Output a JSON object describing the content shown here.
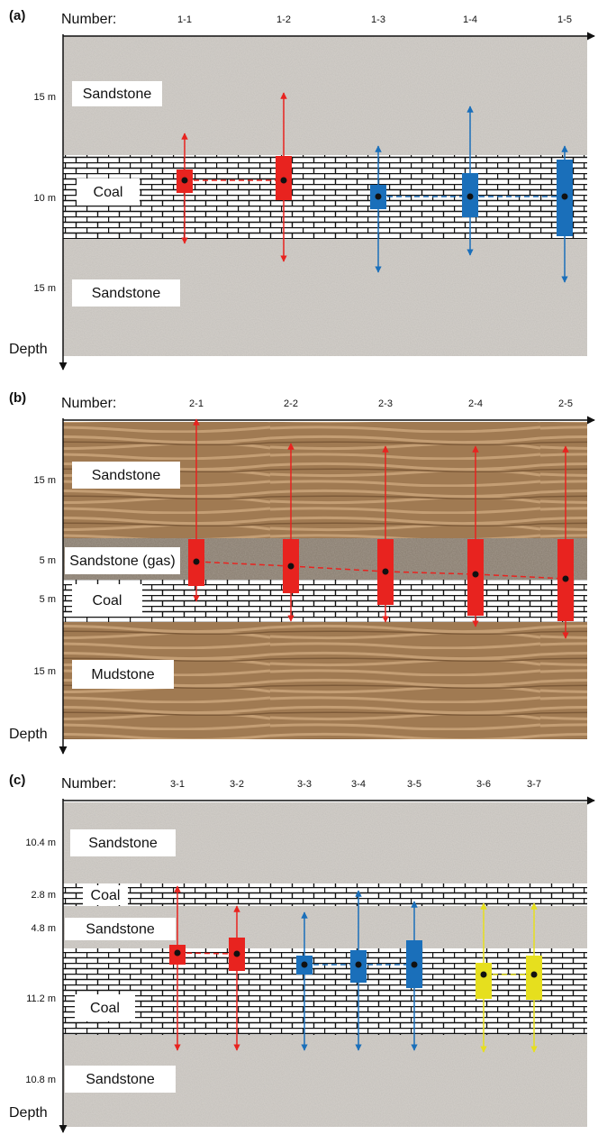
{
  "panels": [
    {
      "label": "(a)",
      "number_label": "Number:",
      "numbers": [
        "1-1",
        "1-2",
        "1-3",
        "1-4",
        "1-5"
      ],
      "depth_label": "Depth",
      "layers": [
        {
          "name": "Sandstone",
          "thickness": "15 m"
        },
        {
          "name": "Coal",
          "thickness": "10 m"
        },
        {
          "name": "Sandstone",
          "thickness": "15 m"
        }
      ]
    },
    {
      "label": "(b)",
      "number_label": "Number:",
      "numbers": [
        "2-1",
        "2-2",
        "2-3",
        "2-4",
        "2-5"
      ],
      "depth_label": "Depth",
      "layers": [
        {
          "name": "Sandstone",
          "thickness": "15 m"
        },
        {
          "name": "Sandstone (gas)",
          "thickness": "5 m"
        },
        {
          "name": "Coal",
          "thickness": "5 m"
        },
        {
          "name": "Mudstone",
          "thickness": "15 m"
        }
      ]
    },
    {
      "label": "(c)",
      "number_label": "Number:",
      "numbers": [
        "3-1",
        "3-2",
        "3-3",
        "3-4",
        "3-5",
        "3-6",
        "3-7"
      ],
      "depth_label": "Depth",
      "layers": [
        {
          "name": "Sandstone",
          "thickness": "10.4 m"
        },
        {
          "name": "Coal",
          "thickness": "2.8 m"
        },
        {
          "name": "Sandstone",
          "thickness": "4.8 m"
        },
        {
          "name": "Coal",
          "thickness": "11.2 m"
        },
        {
          "name": "Sandstone",
          "thickness": "10.8 m"
        }
      ]
    }
  ]
}
